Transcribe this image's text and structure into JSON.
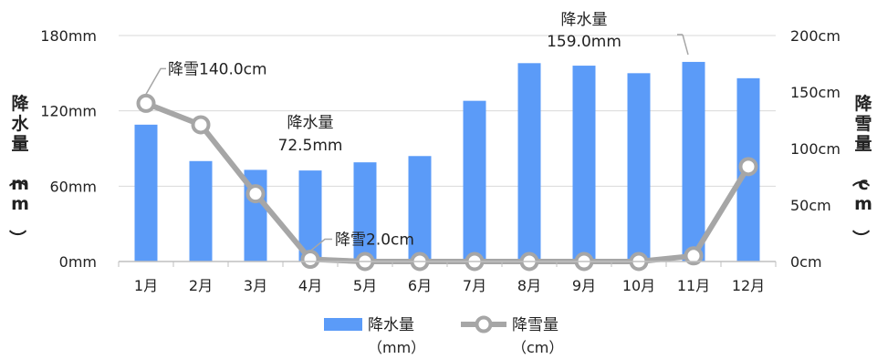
{
  "chart_data": {
    "type": "bar+line",
    "categories": [
      "1月",
      "2月",
      "3月",
      "4月",
      "5月",
      "6月",
      "7月",
      "8月",
      "9月",
      "10月",
      "11月",
      "12月"
    ],
    "series": [
      {
        "name": "降水量",
        "name_unit": "（mm）",
        "type": "bar",
        "axis": "left",
        "values": [
          109,
          80,
          73,
          72.5,
          79,
          84,
          128,
          158,
          156,
          150,
          159,
          146
        ]
      },
      {
        "name": "降雪量",
        "name_unit": "（cm）",
        "type": "line",
        "axis": "right",
        "values": [
          140,
          121,
          60,
          2,
          0,
          0,
          0,
          0,
          0,
          0,
          5,
          84
        ]
      }
    ],
    "left_axis": {
      "label": "降水量（mm）",
      "min": 0,
      "max": 180,
      "ticks": [
        "0mm",
        "60mm",
        "120mm",
        "180mm"
      ]
    },
    "right_axis": {
      "label": "降雪量（cm）",
      "min": 0,
      "max": 200,
      "ticks": [
        "0cm",
        "50cm",
        "100cm",
        "150cm",
        "200cm"
      ]
    },
    "grid": true,
    "legend": "bottom-center",
    "annotations": [
      {
        "series": "降雪量",
        "index": 0,
        "text": "降雪140.0cm"
      },
      {
        "series": "降水量",
        "index": 3,
        "text": "降水量",
        "text2": "72.5mm"
      },
      {
        "series": "降雪量",
        "index": 3,
        "text": "降雪2.0cm"
      },
      {
        "series": "降水量",
        "index": 10,
        "text": "降水量",
        "text2": "159.0mm"
      }
    ],
    "colors": {
      "bar": "#5b9bf8",
      "line": "#a6a6a6",
      "grid": "#d9d9d9",
      "axis": "#bfbfbf",
      "text": "#222222"
    }
  }
}
